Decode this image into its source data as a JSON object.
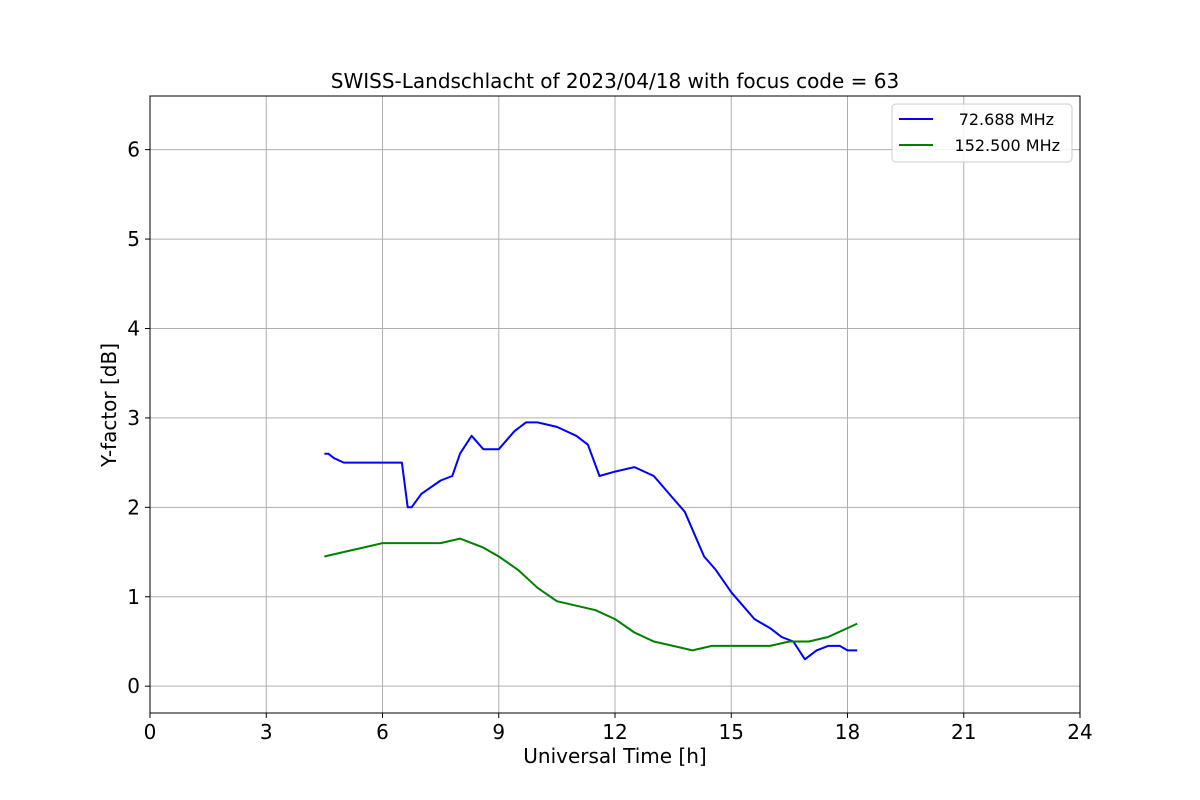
{
  "chart_data": {
    "type": "line",
    "title": "SWISS-Landschlacht of 2023/04/18 with focus code = 63",
    "xlabel": "Universal Time [h]",
    "ylabel": "Y-factor [dB]",
    "xlim": [
      0,
      24
    ],
    "ylim": [
      -0.3,
      6.6
    ],
    "xticks": [
      0,
      3,
      6,
      9,
      12,
      15,
      18,
      21,
      24
    ],
    "yticks": [
      0,
      1,
      2,
      3,
      4,
      5,
      6
    ],
    "grid": true,
    "legend_position": "top-right",
    "series": [
      {
        "name": "72.688 MHz",
        "color": "#0000ff",
        "x": [
          4.5,
          4.6,
          4.75,
          5.0,
          5.5,
          6.0,
          6.5,
          6.65,
          6.75,
          7.0,
          7.5,
          7.8,
          8.0,
          8.3,
          8.6,
          9.0,
          9.4,
          9.7,
          10.0,
          10.5,
          11.0,
          11.3,
          11.6,
          12.0,
          12.5,
          13.0,
          13.5,
          13.8,
          14.0,
          14.3,
          14.6,
          15.0,
          15.3,
          15.6,
          16.0,
          16.3,
          16.6,
          16.9,
          17.2,
          17.5,
          17.8,
          18.0,
          18.25
        ],
        "y": [
          2.6,
          2.6,
          2.55,
          2.5,
          2.5,
          2.5,
          2.5,
          2.0,
          2.0,
          2.15,
          2.3,
          2.35,
          2.6,
          2.8,
          2.65,
          2.65,
          2.85,
          2.95,
          2.95,
          2.9,
          2.8,
          2.7,
          2.35,
          2.4,
          2.45,
          2.35,
          2.1,
          1.95,
          1.75,
          1.45,
          1.3,
          1.05,
          0.9,
          0.75,
          0.65,
          0.55,
          0.5,
          0.3,
          0.4,
          0.45,
          0.45,
          0.4,
          0.4
        ]
      },
      {
        "name": "152.500 MHz",
        "color": "#008000",
        "x": [
          4.5,
          5.0,
          5.5,
          6.0,
          6.5,
          7.0,
          7.5,
          8.0,
          8.3,
          8.6,
          9.0,
          9.5,
          10.0,
          10.5,
          11.0,
          11.5,
          12.0,
          12.5,
          13.0,
          13.5,
          14.0,
          14.5,
          15.0,
          15.5,
          16.0,
          16.5,
          17.0,
          17.5,
          18.0,
          18.25
        ],
        "y": [
          1.45,
          1.5,
          1.55,
          1.6,
          1.6,
          1.6,
          1.6,
          1.65,
          1.6,
          1.55,
          1.45,
          1.3,
          1.1,
          0.95,
          0.9,
          0.85,
          0.75,
          0.6,
          0.5,
          0.45,
          0.4,
          0.45,
          0.45,
          0.45,
          0.45,
          0.5,
          0.5,
          0.55,
          0.65,
          0.7
        ]
      }
    ]
  }
}
